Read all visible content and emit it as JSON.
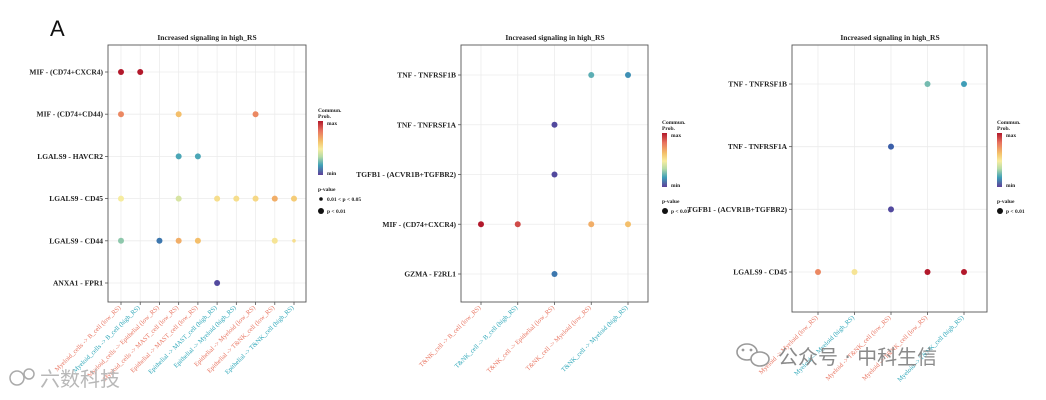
{
  "panel_letter": "A",
  "colors": {
    "salmon": "#e8735f",
    "teal": "#2ba6b8",
    "grid": "#ececec",
    "border": "#555555",
    "scale": [
      "#b2182b",
      "#e8735f",
      "#f4c26b",
      "#f7ec9f",
      "#b7dca6",
      "#3fa0b8",
      "#3b5ca8",
      "#5e3f99"
    ]
  },
  "legend": {
    "title_line1": "Commun.",
    "title_line2": "Prob.",
    "max": "max",
    "min": "min",
    "pvalue_title": "p-value",
    "p_labels": [
      "0.01 < p < 0.05",
      "p < 0.01"
    ]
  },
  "watermarks": {
    "left": "六数科技",
    "right": "公众号 · 中科生信"
  },
  "chart_data": [
    {
      "type": "scatter",
      "title": "Increased signaling in high_RS",
      "show_mid_p": true,
      "rows": [
        "MIF - (CD74+CXCR4)",
        "MIF - (CD74+CD44)",
        "LGALS9 - HAVCR2",
        "LGALS9 - CD45",
        "LGALS9 - CD44",
        "ANXA1 - FPR1"
      ],
      "columns": [
        {
          "label": "Myeloid_cells -> B_cell (low_RS)",
          "group": "low"
        },
        {
          "label": "Myeloid_cells -> B_cell (high_RS)",
          "group": "high"
        },
        {
          "label": "Myeloid_cells -> Epithelial (low_RS)",
          "group": "low"
        },
        {
          "label": "Myeloid_cells -> MAST_cell (low_RS)",
          "group": "low"
        },
        {
          "label": "Epithelial -> MAST_cell (low_RS)",
          "group": "low"
        },
        {
          "label": "Epithelial -> MAST_cell (high_RS)",
          "group": "high"
        },
        {
          "label": "Epithelial -> Myeloid (high_RS)",
          "group": "high"
        },
        {
          "label": "Epithelial -> Myeloid (low_RS)",
          "group": "low"
        },
        {
          "label": "Epithelial -> T&NK_cell (low_RS)",
          "group": "low"
        },
        {
          "label": "Epithelial -> T&NK_cell (high_RS)",
          "group": "high"
        }
      ],
      "points": [
        {
          "row": 0,
          "col": 0,
          "prob": 1.0,
          "p": "p < 0.01"
        },
        {
          "row": 0,
          "col": 1,
          "prob": 1.0,
          "p": "p < 0.01"
        },
        {
          "row": 1,
          "col": 0,
          "prob": 0.82,
          "p": "p < 0.01"
        },
        {
          "row": 1,
          "col": 3,
          "prob": 0.72,
          "p": "p < 0.01"
        },
        {
          "row": 1,
          "col": 7,
          "prob": 0.82,
          "p": "p < 0.01"
        },
        {
          "row": 2,
          "col": 3,
          "prob": 0.3,
          "p": "p < 0.01"
        },
        {
          "row": 2,
          "col": 4,
          "prob": 0.3,
          "p": "p < 0.01"
        },
        {
          "row": 3,
          "col": 0,
          "prob": 0.57,
          "p": "p < 0.01"
        },
        {
          "row": 3,
          "col": 3,
          "prob": 0.5,
          "p": "p < 0.01"
        },
        {
          "row": 3,
          "col": 5,
          "prob": 0.62,
          "p": "p < 0.01"
        },
        {
          "row": 3,
          "col": 6,
          "prob": 0.62,
          "p": "p < 0.01"
        },
        {
          "row": 3,
          "col": 7,
          "prob": 0.64,
          "p": "p < 0.01"
        },
        {
          "row": 3,
          "col": 8,
          "prob": 0.75,
          "p": "p < 0.01"
        },
        {
          "row": 3,
          "col": 9,
          "prob": 0.68,
          "p": "p < 0.01"
        },
        {
          "row": 4,
          "col": 0,
          "prob": 0.38,
          "p": "p < 0.01"
        },
        {
          "row": 4,
          "col": 2,
          "prob": 0.2,
          "p": "p < 0.01"
        },
        {
          "row": 4,
          "col": 3,
          "prob": 0.75,
          "p": "p < 0.01"
        },
        {
          "row": 4,
          "col": 4,
          "prob": 0.72,
          "p": "p < 0.01"
        },
        {
          "row": 4,
          "col": 8,
          "prob": 0.6,
          "p": "p < 0.01"
        },
        {
          "row": 4,
          "col": 9,
          "prob": 0.62,
          "p": "0.01 < p < 0.05"
        },
        {
          "row": 5,
          "col": 5,
          "prob": 0.05,
          "p": "p < 0.01"
        }
      ]
    },
    {
      "type": "scatter",
      "title": "Increased signaling in high_RS",
      "show_mid_p": false,
      "rows": [
        "TNF - TNFRSF1B",
        "TNF - TNFRSF1A",
        "TGFB1 - (ACVR1B+TGFBR2)",
        "MIF - (CD74+CXCR4)",
        "GZMA - F2RL1"
      ],
      "columns": [
        {
          "label": "T&NK_cell -> B_cell (low_RS)",
          "group": "low"
        },
        {
          "label": "T&NK_cell -> B_cell (high_RS)",
          "group": "high"
        },
        {
          "label": "T&NK_cell -> Epithelial (low_RS)",
          "group": "low"
        },
        {
          "label": "T&NK_cell -> Myeloid (low_RS)",
          "group": "low"
        },
        {
          "label": "T&NK_cell -> Myeloid (high_RS)",
          "group": "high"
        }
      ],
      "points": [
        {
          "row": 0,
          "col": 3,
          "prob": 0.32,
          "p": "p < 0.01"
        },
        {
          "row": 0,
          "col": 4,
          "prob": 0.25,
          "p": "p < 0.01"
        },
        {
          "row": 1,
          "col": 2,
          "prob": 0.05,
          "p": "p < 0.01"
        },
        {
          "row": 2,
          "col": 2,
          "prob": 0.05,
          "p": "p < 0.01"
        },
        {
          "row": 3,
          "col": 0,
          "prob": 1.0,
          "p": "p < 0.01"
        },
        {
          "row": 3,
          "col": 1,
          "prob": 0.92,
          "p": "p < 0.01"
        },
        {
          "row": 3,
          "col": 3,
          "prob": 0.75,
          "p": "p < 0.01"
        },
        {
          "row": 3,
          "col": 4,
          "prob": 0.72,
          "p": "p < 0.01"
        },
        {
          "row": 4,
          "col": 2,
          "prob": 0.2,
          "p": "p < 0.01"
        }
      ]
    },
    {
      "type": "scatter",
      "title": "Increased signaling in high_RS",
      "show_mid_p": false,
      "rows": [
        "TNF - TNFRSF1B",
        "TNF - TNFRSF1A",
        "TGFB1 - (ACVR1B+TGFBR2)",
        "LGALS9 - CD45"
      ],
      "columns": [
        {
          "label": "Myeloid -> Myeloid (low_RS)",
          "group": "low"
        },
        {
          "label": "Myeloid -> Myeloid (high_RS)",
          "group": "high"
        },
        {
          "label": "Myeloid -> T&NK_cell (low_RS)",
          "group": "low"
        },
        {
          "label": "Myeloid -> T&NK_cell (low_RS)",
          "group": "low"
        },
        {
          "label": "Myeloid -> T&NK_cell (high_RS)",
          "group": "high"
        }
      ],
      "points": [
        {
          "row": 0,
          "col": 3,
          "prob": 0.35,
          "p": "p < 0.01"
        },
        {
          "row": 0,
          "col": 4,
          "prob": 0.28,
          "p": "p < 0.01"
        },
        {
          "row": 1,
          "col": 2,
          "prob": 0.15,
          "p": "p < 0.01"
        },
        {
          "row": 2,
          "col": 2,
          "prob": 0.05,
          "p": "p < 0.01"
        },
        {
          "row": 3,
          "col": 0,
          "prob": 0.82,
          "p": "p < 0.01"
        },
        {
          "row": 3,
          "col": 1,
          "prob": 0.6,
          "p": "p < 0.01"
        },
        {
          "row": 3,
          "col": 3,
          "prob": 1.0,
          "p": "p < 0.01"
        },
        {
          "row": 3,
          "col": 4,
          "prob": 1.0,
          "p": "p < 0.01"
        }
      ]
    }
  ]
}
